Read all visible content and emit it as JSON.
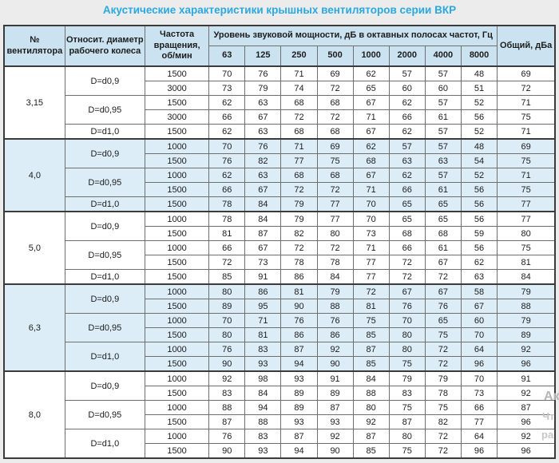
{
  "page": {
    "title": "Акустические характеристики крышных вентиляторов серии ВКР"
  },
  "colors": {
    "title_text": "#29a9e0",
    "header_bg": "#cbe3f1",
    "shaded_group_bg": "#dcedf8",
    "outer_border": "#3b3b3b",
    "inner_border": "#6f6f6f",
    "page_bg": "#ececec",
    "watermark_gray": "#c2c2c2"
  },
  "table": {
    "headers": {
      "fan_no": "№ вентилятора",
      "diameter": "Относит. диаметр рабочего колеса",
      "freq": "Частота вращения, об/мин",
      "octave_title": "Уровень звуковой мощности, дБ в октавных полосах частот, Гц",
      "octave_bands": [
        "63",
        "125",
        "250",
        "500",
        "1000",
        "2000",
        "4000",
        "8000"
      ],
      "total": "Общий, дБа"
    },
    "groups": [
      {
        "fan": "3,15",
        "shaded": false,
        "subgroups": [
          {
            "diameter": "D=d0,9",
            "rows": [
              {
                "freq": "1500",
                "values": [
                  70,
                  76,
                  71,
                  69,
                  62,
                  57,
                  57,
                  48
                ],
                "total": 69
              },
              {
                "freq": "3000",
                "values": [
                  73,
                  79,
                  74,
                  72,
                  65,
                  60,
                  60,
                  51
                ],
                "total": 72
              }
            ]
          },
          {
            "diameter": "D=d0,95",
            "rows": [
              {
                "freq": "1500",
                "values": [
                  62,
                  63,
                  68,
                  68,
                  67,
                  62,
                  57,
                  52
                ],
                "total": 71
              },
              {
                "freq": "3000",
                "values": [
                  66,
                  67,
                  72,
                  72,
                  71,
                  66,
                  61,
                  56
                ],
                "total": 75
              }
            ]
          },
          {
            "diameter": "D=d1,0",
            "rows": [
              {
                "freq": "1500",
                "values": [
                  62,
                  63,
                  68,
                  68,
                  67,
                  62,
                  57,
                  52
                ],
                "total": 71
              }
            ]
          }
        ]
      },
      {
        "fan": "4,0",
        "shaded": true,
        "subgroups": [
          {
            "diameter": "D=d0,9",
            "rows": [
              {
                "freq": "1000",
                "values": [
                  70,
                  76,
                  71,
                  69,
                  62,
                  57,
                  57,
                  48
                ],
                "total": 69
              },
              {
                "freq": "1500",
                "values": [
                  76,
                  82,
                  77,
                  75,
                  68,
                  63,
                  63,
                  54
                ],
                "total": 75
              }
            ]
          },
          {
            "diameter": "D=d0,95",
            "rows": [
              {
                "freq": "1000",
                "values": [
                  62,
                  63,
                  68,
                  68,
                  67,
                  62,
                  57,
                  52
                ],
                "total": 71
              },
              {
                "freq": "1500",
                "values": [
                  66,
                  67,
                  72,
                  72,
                  71,
                  66,
                  61,
                  56
                ],
                "total": 75
              }
            ]
          },
          {
            "diameter": "D=d1,0",
            "rows": [
              {
                "freq": "1500",
                "values": [
                  78,
                  84,
                  79,
                  77,
                  70,
                  65,
                  65,
                  56
                ],
                "total": 77
              }
            ]
          }
        ]
      },
      {
        "fan": "5,0",
        "shaded": false,
        "subgroups": [
          {
            "diameter": "D=d0,9",
            "rows": [
              {
                "freq": "1000",
                "values": [
                  78,
                  84,
                  79,
                  77,
                  70,
                  65,
                  65,
                  56
                ],
                "total": 77
              },
              {
                "freq": "1500",
                "values": [
                  81,
                  87,
                  82,
                  80,
                  73,
                  68,
                  68,
                  59
                ],
                "total": 80
              }
            ]
          },
          {
            "diameter": "D=d0,95",
            "rows": [
              {
                "freq": "1000",
                "values": [
                  66,
                  67,
                  72,
                  72,
                  71,
                  66,
                  61,
                  56
                ],
                "total": 75
              },
              {
                "freq": "1500",
                "values": [
                  72,
                  73,
                  78,
                  78,
                  77,
                  72,
                  67,
                  62
                ],
                "total": 81
              }
            ]
          },
          {
            "diameter": "D=d1,0",
            "rows": [
              {
                "freq": "1500",
                "values": [
                  85,
                  91,
                  86,
                  84,
                  77,
                  72,
                  72,
                  63
                ],
                "total": 84
              }
            ]
          }
        ]
      },
      {
        "fan": "6,3",
        "shaded": true,
        "subgroups": [
          {
            "diameter": "D=d0,9",
            "rows": [
              {
                "freq": "1000",
                "values": [
                  80,
                  86,
                  81,
                  79,
                  72,
                  67,
                  67,
                  58
                ],
                "total": 79
              },
              {
                "freq": "1500",
                "values": [
                  89,
                  95,
                  90,
                  88,
                  81,
                  76,
                  76,
                  67
                ],
                "total": 88
              }
            ]
          },
          {
            "diameter": "D=d0,95",
            "rows": [
              {
                "freq": "1000",
                "values": [
                  70,
                  71,
                  76,
                  76,
                  75,
                  70,
                  65,
                  60
                ],
                "total": 79
              },
              {
                "freq": "1500",
                "values": [
                  80,
                  81,
                  86,
                  86,
                  85,
                  80,
                  75,
                  70
                ],
                "total": 89
              }
            ]
          },
          {
            "diameter": "D=d1,0",
            "rows": [
              {
                "freq": "1000",
                "values": [
                  76,
                  83,
                  87,
                  92,
                  87,
                  80,
                  72,
                  64
                ],
                "total": 92
              },
              {
                "freq": "1500",
                "values": [
                  90,
                  93,
                  94,
                  90,
                  85,
                  75,
                  72,
                  96
                ],
                "total": 96
              }
            ]
          }
        ]
      },
      {
        "fan": "8,0",
        "shaded": false,
        "subgroups": [
          {
            "diameter": "D=d0,9",
            "rows": [
              {
                "freq": "1000",
                "values": [
                  92,
                  98,
                  93,
                  91,
                  84,
                  79,
                  79,
                  70
                ],
                "total": 91
              },
              {
                "freq": "1500",
                "values": [
                  83,
                  84,
                  89,
                  89,
                  88,
                  83,
                  78,
                  73
                ],
                "total": 92
              }
            ]
          },
          {
            "diameter": "D=d0,95",
            "rows": [
              {
                "freq": "1000",
                "values": [
                  88,
                  94,
                  89,
                  87,
                  80,
                  75,
                  75,
                  66
                ],
                "total": 87
              },
              {
                "freq": "1500",
                "values": [
                  87,
                  88,
                  93,
                  93,
                  92,
                  87,
                  82,
                  77
                ],
                "total": 96
              }
            ]
          },
          {
            "diameter": "D=d1,0",
            "rows": [
              {
                "freq": "1000",
                "values": [
                  76,
                  83,
                  87,
                  92,
                  87,
                  80,
                  72,
                  64
                ],
                "total": 92
              },
              {
                "freq": "1500",
                "values": [
                  90,
                  93,
                  94,
                  90,
                  85,
                  75,
                  72,
                  96
                ],
                "total": 96
              }
            ]
          }
        ]
      }
    ]
  },
  "watermark": {
    "fragments": [
      "Ак",
      "Чт",
      "ра"
    ]
  }
}
